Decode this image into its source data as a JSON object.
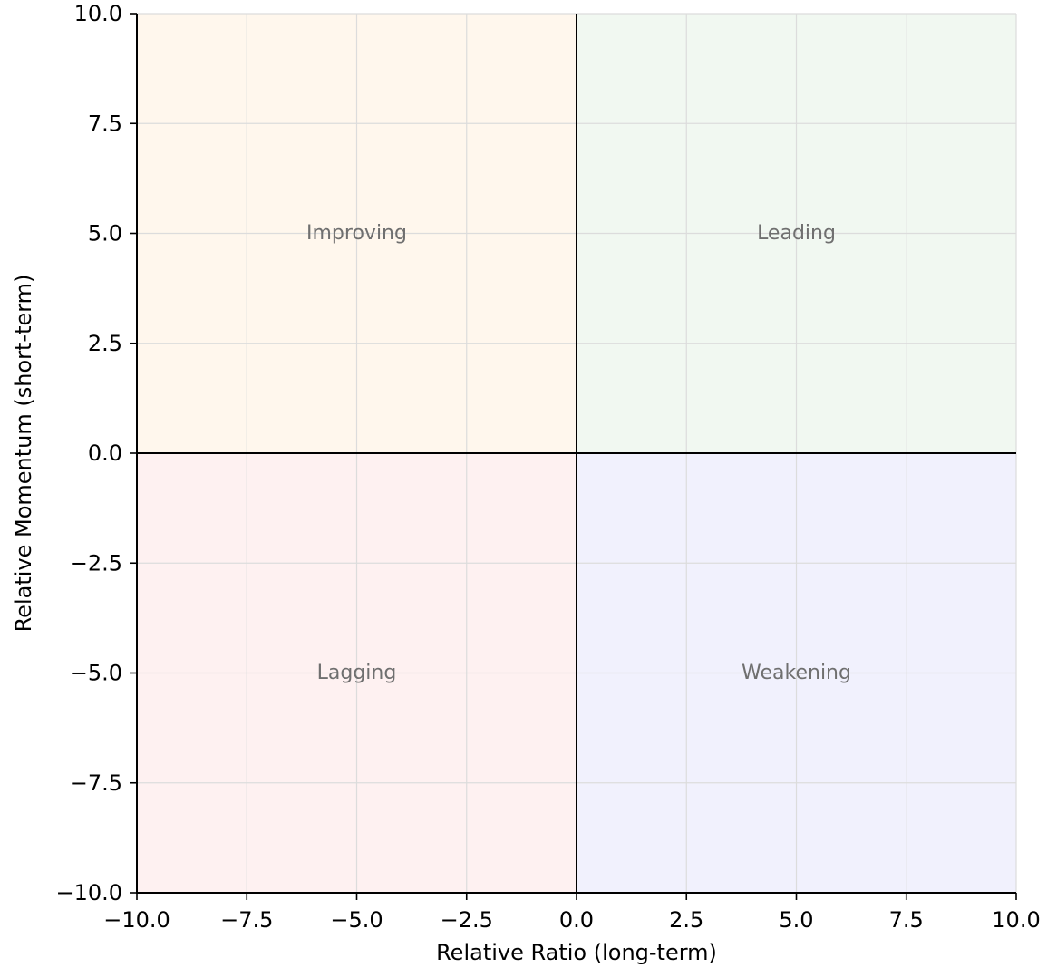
{
  "chart_data": {
    "type": "scatter",
    "title": "",
    "xlabel": "Relative Ratio (long-term)",
    "ylabel": "Relative Momentum (short-term)",
    "xlim": [
      -10,
      10
    ],
    "ylim": [
      -10,
      10
    ],
    "grid": true,
    "x_ticks": [
      -10,
      -7.5,
      -5,
      -2.5,
      0,
      2.5,
      5,
      7.5,
      10
    ],
    "y_ticks": [
      -10,
      -7.5,
      -5,
      -2.5,
      0,
      2.5,
      5,
      7.5,
      10
    ],
    "x_tick_labels": [
      "−10.0",
      "−7.5",
      "−5.0",
      "−2.5",
      "0.0",
      "2.5",
      "5.0",
      "7.5",
      "10.0"
    ],
    "y_tick_labels": [
      "−10.0",
      "−7.5",
      "−5.0",
      "−2.5",
      "0.0",
      "2.5",
      "5.0",
      "7.5",
      "10.0"
    ],
    "reference_lines": {
      "x": 0,
      "y": 0
    },
    "quadrants": [
      {
        "name": "Improving",
        "x_range": [
          -10,
          0
        ],
        "y_range": [
          0,
          10
        ],
        "label_at": [
          -5,
          5
        ],
        "color": "#fff7ed"
      },
      {
        "name": "Leading",
        "x_range": [
          0,
          10
        ],
        "y_range": [
          0,
          10
        ],
        "label_at": [
          5,
          5
        ],
        "color": "#f1f8f1"
      },
      {
        "name": "Lagging",
        "x_range": [
          -10,
          0
        ],
        "y_range": [
          -10,
          0
        ],
        "label_at": [
          -5,
          -5
        ],
        "color": "#fef1f1"
      },
      {
        "name": "Weakening",
        "x_range": [
          0,
          10
        ],
        "y_range": [
          -10,
          0
        ],
        "label_at": [
          5,
          -5
        ],
        "color": "#f1f1fd"
      }
    ],
    "series": []
  }
}
